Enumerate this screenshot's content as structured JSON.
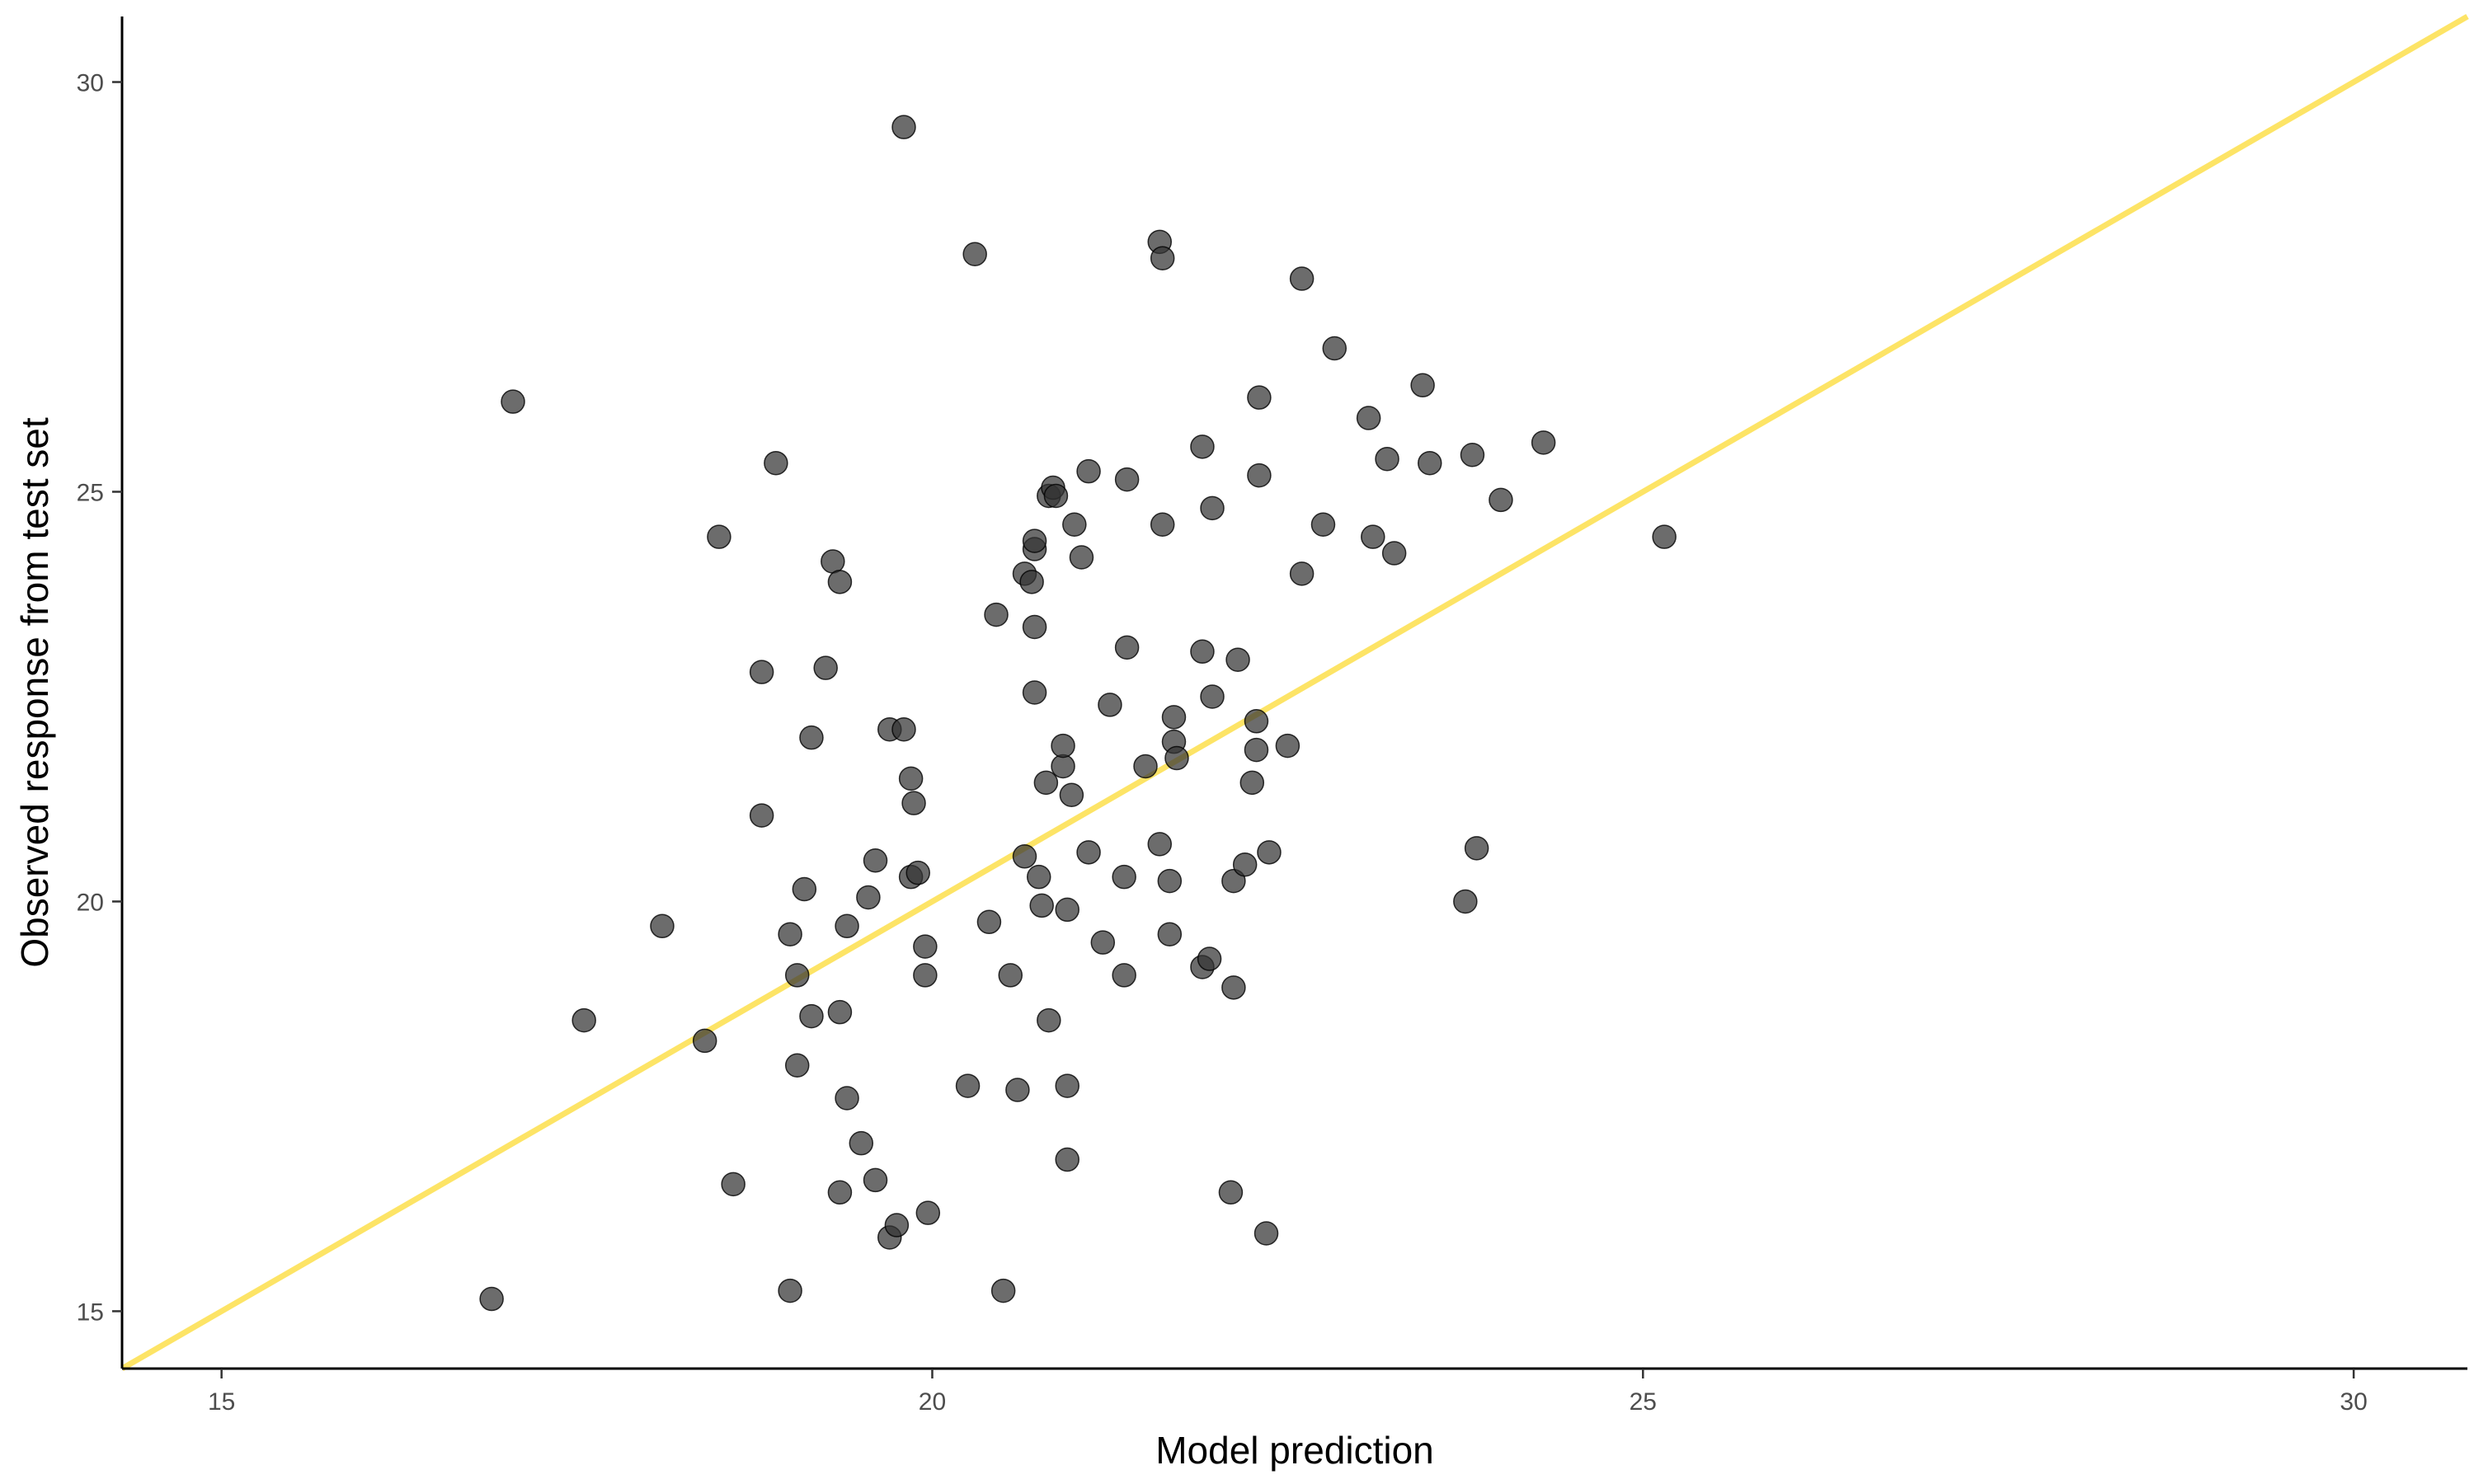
{
  "chart_data": {
    "type": "scatter",
    "xlabel": "Model prediction",
    "ylabel": "Observed response from test set",
    "xlim": [
      14.3,
      30.8
    ],
    "ylim": [
      14.3,
      30.8
    ],
    "x_ticks": [
      15,
      20,
      25,
      30
    ],
    "y_ticks": [
      15,
      20,
      25,
      30
    ],
    "grid": false,
    "reference_line": {
      "slope": 1,
      "intercept": 0,
      "color": "#FDE466"
    },
    "point_color": "#333333",
    "points": [
      [
        16.9,
        15.15
      ],
      [
        17.05,
        26.1
      ],
      [
        17.55,
        18.55
      ],
      [
        18.1,
        19.7
      ],
      [
        18.4,
        18.3
      ],
      [
        18.5,
        24.45
      ],
      [
        18.6,
        16.55
      ],
      [
        18.8,
        22.8
      ],
      [
        18.8,
        21.05
      ],
      [
        18.9,
        25.35
      ],
      [
        19.0,
        19.6
      ],
      [
        19.0,
        15.25
      ],
      [
        19.05,
        19.1
      ],
      [
        19.05,
        18.0
      ],
      [
        19.1,
        20.15
      ],
      [
        19.15,
        18.6
      ],
      [
        19.15,
        22.0
      ],
      [
        19.25,
        22.85
      ],
      [
        19.3,
        24.15
      ],
      [
        19.35,
        23.9
      ],
      [
        19.35,
        18.65
      ],
      [
        19.35,
        16.45
      ],
      [
        19.4,
        17.6
      ],
      [
        19.4,
        19.7
      ],
      [
        19.5,
        17.05
      ],
      [
        19.55,
        20.05
      ],
      [
        19.6,
        16.6
      ],
      [
        19.6,
        20.5
      ],
      [
        19.7,
        22.1
      ],
      [
        19.7,
        15.9
      ],
      [
        19.75,
        16.05
      ],
      [
        19.8,
        22.1
      ],
      [
        19.8,
        29.45
      ],
      [
        19.85,
        20.3
      ],
      [
        19.85,
        21.5
      ],
      [
        19.87,
        21.2
      ],
      [
        19.9,
        20.35
      ],
      [
        19.95,
        19.1
      ],
      [
        19.95,
        19.45
      ],
      [
        19.97,
        16.2
      ],
      [
        20.25,
        17.75
      ],
      [
        20.3,
        27.9
      ],
      [
        20.4,
        19.75
      ],
      [
        20.45,
        23.5
      ],
      [
        20.5,
        15.25
      ],
      [
        20.55,
        19.1
      ],
      [
        20.6,
        17.7
      ],
      [
        20.65,
        20.55
      ],
      [
        20.65,
        24.0
      ],
      [
        20.7,
        23.9
      ],
      [
        20.72,
        24.3
      ],
      [
        20.72,
        24.4
      ],
      [
        20.72,
        22.55
      ],
      [
        20.72,
        23.35
      ],
      [
        20.75,
        20.3
      ],
      [
        20.77,
        19.95
      ],
      [
        20.8,
        21.45
      ],
      [
        20.82,
        18.55
      ],
      [
        20.82,
        24.95
      ],
      [
        20.85,
        25.05
      ],
      [
        20.87,
        24.95
      ],
      [
        20.92,
        21.65
      ],
      [
        20.92,
        21.9
      ],
      [
        20.95,
        19.9
      ],
      [
        20.95,
        17.75
      ],
      [
        20.95,
        16.85
      ],
      [
        20.98,
        21.3
      ],
      [
        21.0,
        24.6
      ],
      [
        21.05,
        24.2
      ],
      [
        21.1,
        20.6
      ],
      [
        21.1,
        25.25
      ],
      [
        21.2,
        19.5
      ],
      [
        21.25,
        22.4
      ],
      [
        21.35,
        19.1
      ],
      [
        21.35,
        20.3
      ],
      [
        21.37,
        25.15
      ],
      [
        21.37,
        23.1
      ],
      [
        21.5,
        21.65
      ],
      [
        21.6,
        20.7
      ],
      [
        21.6,
        28.05
      ],
      [
        21.62,
        24.6
      ],
      [
        21.62,
        27.85
      ],
      [
        21.67,
        19.6
      ],
      [
        21.67,
        20.25
      ],
      [
        21.7,
        22.25
      ],
      [
        21.7,
        21.95
      ],
      [
        21.72,
        21.75
      ],
      [
        21.9,
        19.2
      ],
      [
        21.9,
        23.05
      ],
      [
        21.9,
        25.55
      ],
      [
        21.95,
        19.3
      ],
      [
        21.97,
        22.5
      ],
      [
        21.97,
        24.8
      ],
      [
        22.1,
        16.45
      ],
      [
        22.12,
        20.25
      ],
      [
        22.12,
        18.95
      ],
      [
        22.15,
        22.95
      ],
      [
        22.2,
        20.45
      ],
      [
        22.25,
        21.45
      ],
      [
        22.28,
        21.85
      ],
      [
        22.28,
        22.2
      ],
      [
        22.3,
        26.15
      ],
      [
        22.3,
        25.2
      ],
      [
        22.35,
        15.95
      ],
      [
        22.37,
        20.6
      ],
      [
        22.5,
        21.9
      ],
      [
        22.6,
        24.0
      ],
      [
        22.6,
        27.6
      ],
      [
        22.75,
        24.6
      ],
      [
        22.83,
        26.75
      ],
      [
        23.07,
        25.9
      ],
      [
        23.1,
        24.45
      ],
      [
        23.2,
        25.4
      ],
      [
        23.25,
        24.25
      ],
      [
        23.45,
        26.3
      ],
      [
        23.5,
        25.35
      ],
      [
        23.75,
        20.0
      ],
      [
        23.8,
        25.45
      ],
      [
        23.83,
        20.65
      ],
      [
        24.0,
        24.9
      ],
      [
        24.3,
        25.6
      ],
      [
        25.15,
        24.45
      ]
    ]
  }
}
